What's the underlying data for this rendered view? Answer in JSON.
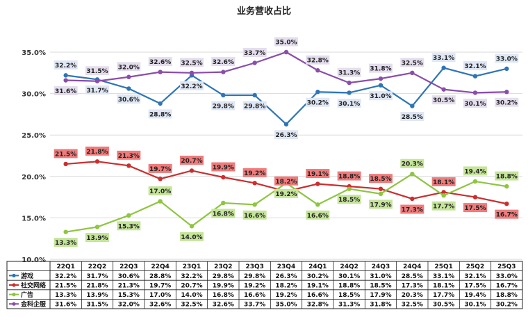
{
  "chart_data": {
    "type": "line",
    "title": "业务营收占比",
    "categories": [
      "22Q1",
      "22Q2",
      "22Q3",
      "22Q4",
      "23Q1",
      "23Q2",
      "23Q3",
      "23Q4",
      "24Q1",
      "24Q2",
      "24Q3",
      "24Q4",
      "25Q1",
      "25Q2",
      "25Q3"
    ],
    "ylim": [
      10,
      35
    ],
    "yticks": [
      10,
      15,
      20,
      25,
      30,
      35
    ],
    "ytick_labels": [
      "10.0%",
      "15.0%",
      "20.0%",
      "25.0%",
      "30.0%",
      "35.0%"
    ],
    "grid": true,
    "legend": "data-table",
    "series": [
      {
        "name": "游戏",
        "color": "#2e75b6",
        "label_bg": "#dfe7f5",
        "values": [
          32.2,
          31.7,
          30.6,
          28.8,
          32.2,
          29.8,
          29.8,
          26.3,
          30.2,
          30.1,
          31.0,
          28.5,
          33.1,
          32.1,
          33.0
        ],
        "labels": [
          "32.2%",
          "31.7%",
          "30.6%",
          "28.8%",
          "32.2%",
          "29.8%",
          "29.8%",
          "26.3%",
          "30.2%",
          "30.1%",
          "31.0%",
          "28.5%",
          "33.1%",
          "32.1%",
          "33.0%"
        ]
      },
      {
        "name": "社交网络",
        "color": "#cc2d2d",
        "label_bg": "#ef7b7b",
        "values": [
          21.5,
          21.8,
          21.3,
          19.7,
          20.7,
          19.9,
          19.2,
          18.2,
          19.1,
          18.8,
          18.5,
          17.3,
          18.1,
          17.5,
          16.7
        ],
        "labels": [
          "21.5%",
          "21.8%",
          "21.3%",
          "19.7%",
          "20.7%",
          "19.9%",
          "19.2%",
          "18.2%",
          "19.1%",
          "18.8%",
          "18.5%",
          "17.3%",
          "18.1%",
          "17.5%",
          "16.7%"
        ]
      },
      {
        "name": "广告",
        "color": "#8dc63f",
        "label_bg": "#c5e59a",
        "values": [
          13.3,
          13.9,
          15.3,
          17.0,
          14.0,
          16.8,
          16.6,
          19.2,
          16.6,
          18.5,
          17.9,
          20.3,
          17.7,
          19.4,
          18.8
        ],
        "labels": [
          "13.3%",
          "13.9%",
          "15.3%",
          "17.0%",
          "14.0%",
          "16.8%",
          "16.6%",
          "19.2%",
          "16.6%",
          "18.5%",
          "17.9%",
          "20.3%",
          "17.7%",
          "19.4%",
          "18.8%"
        ]
      },
      {
        "name": "金科企服",
        "color": "#8a4dab",
        "label_bg": "#e4ddee",
        "values": [
          31.6,
          31.5,
          32.0,
          32.6,
          32.5,
          32.6,
          33.7,
          35.0,
          32.8,
          31.3,
          31.8,
          32.5,
          30.5,
          30.1,
          30.2
        ],
        "labels": [
          "31.6%",
          "31.5%",
          "32.0%",
          "32.6%",
          "32.5%",
          "32.6%",
          "33.7%",
          "35.0%",
          "32.8%",
          "31.3%",
          "31.8%",
          "32.5%",
          "30.5%",
          "30.1%",
          "30.2%"
        ]
      }
    ]
  }
}
